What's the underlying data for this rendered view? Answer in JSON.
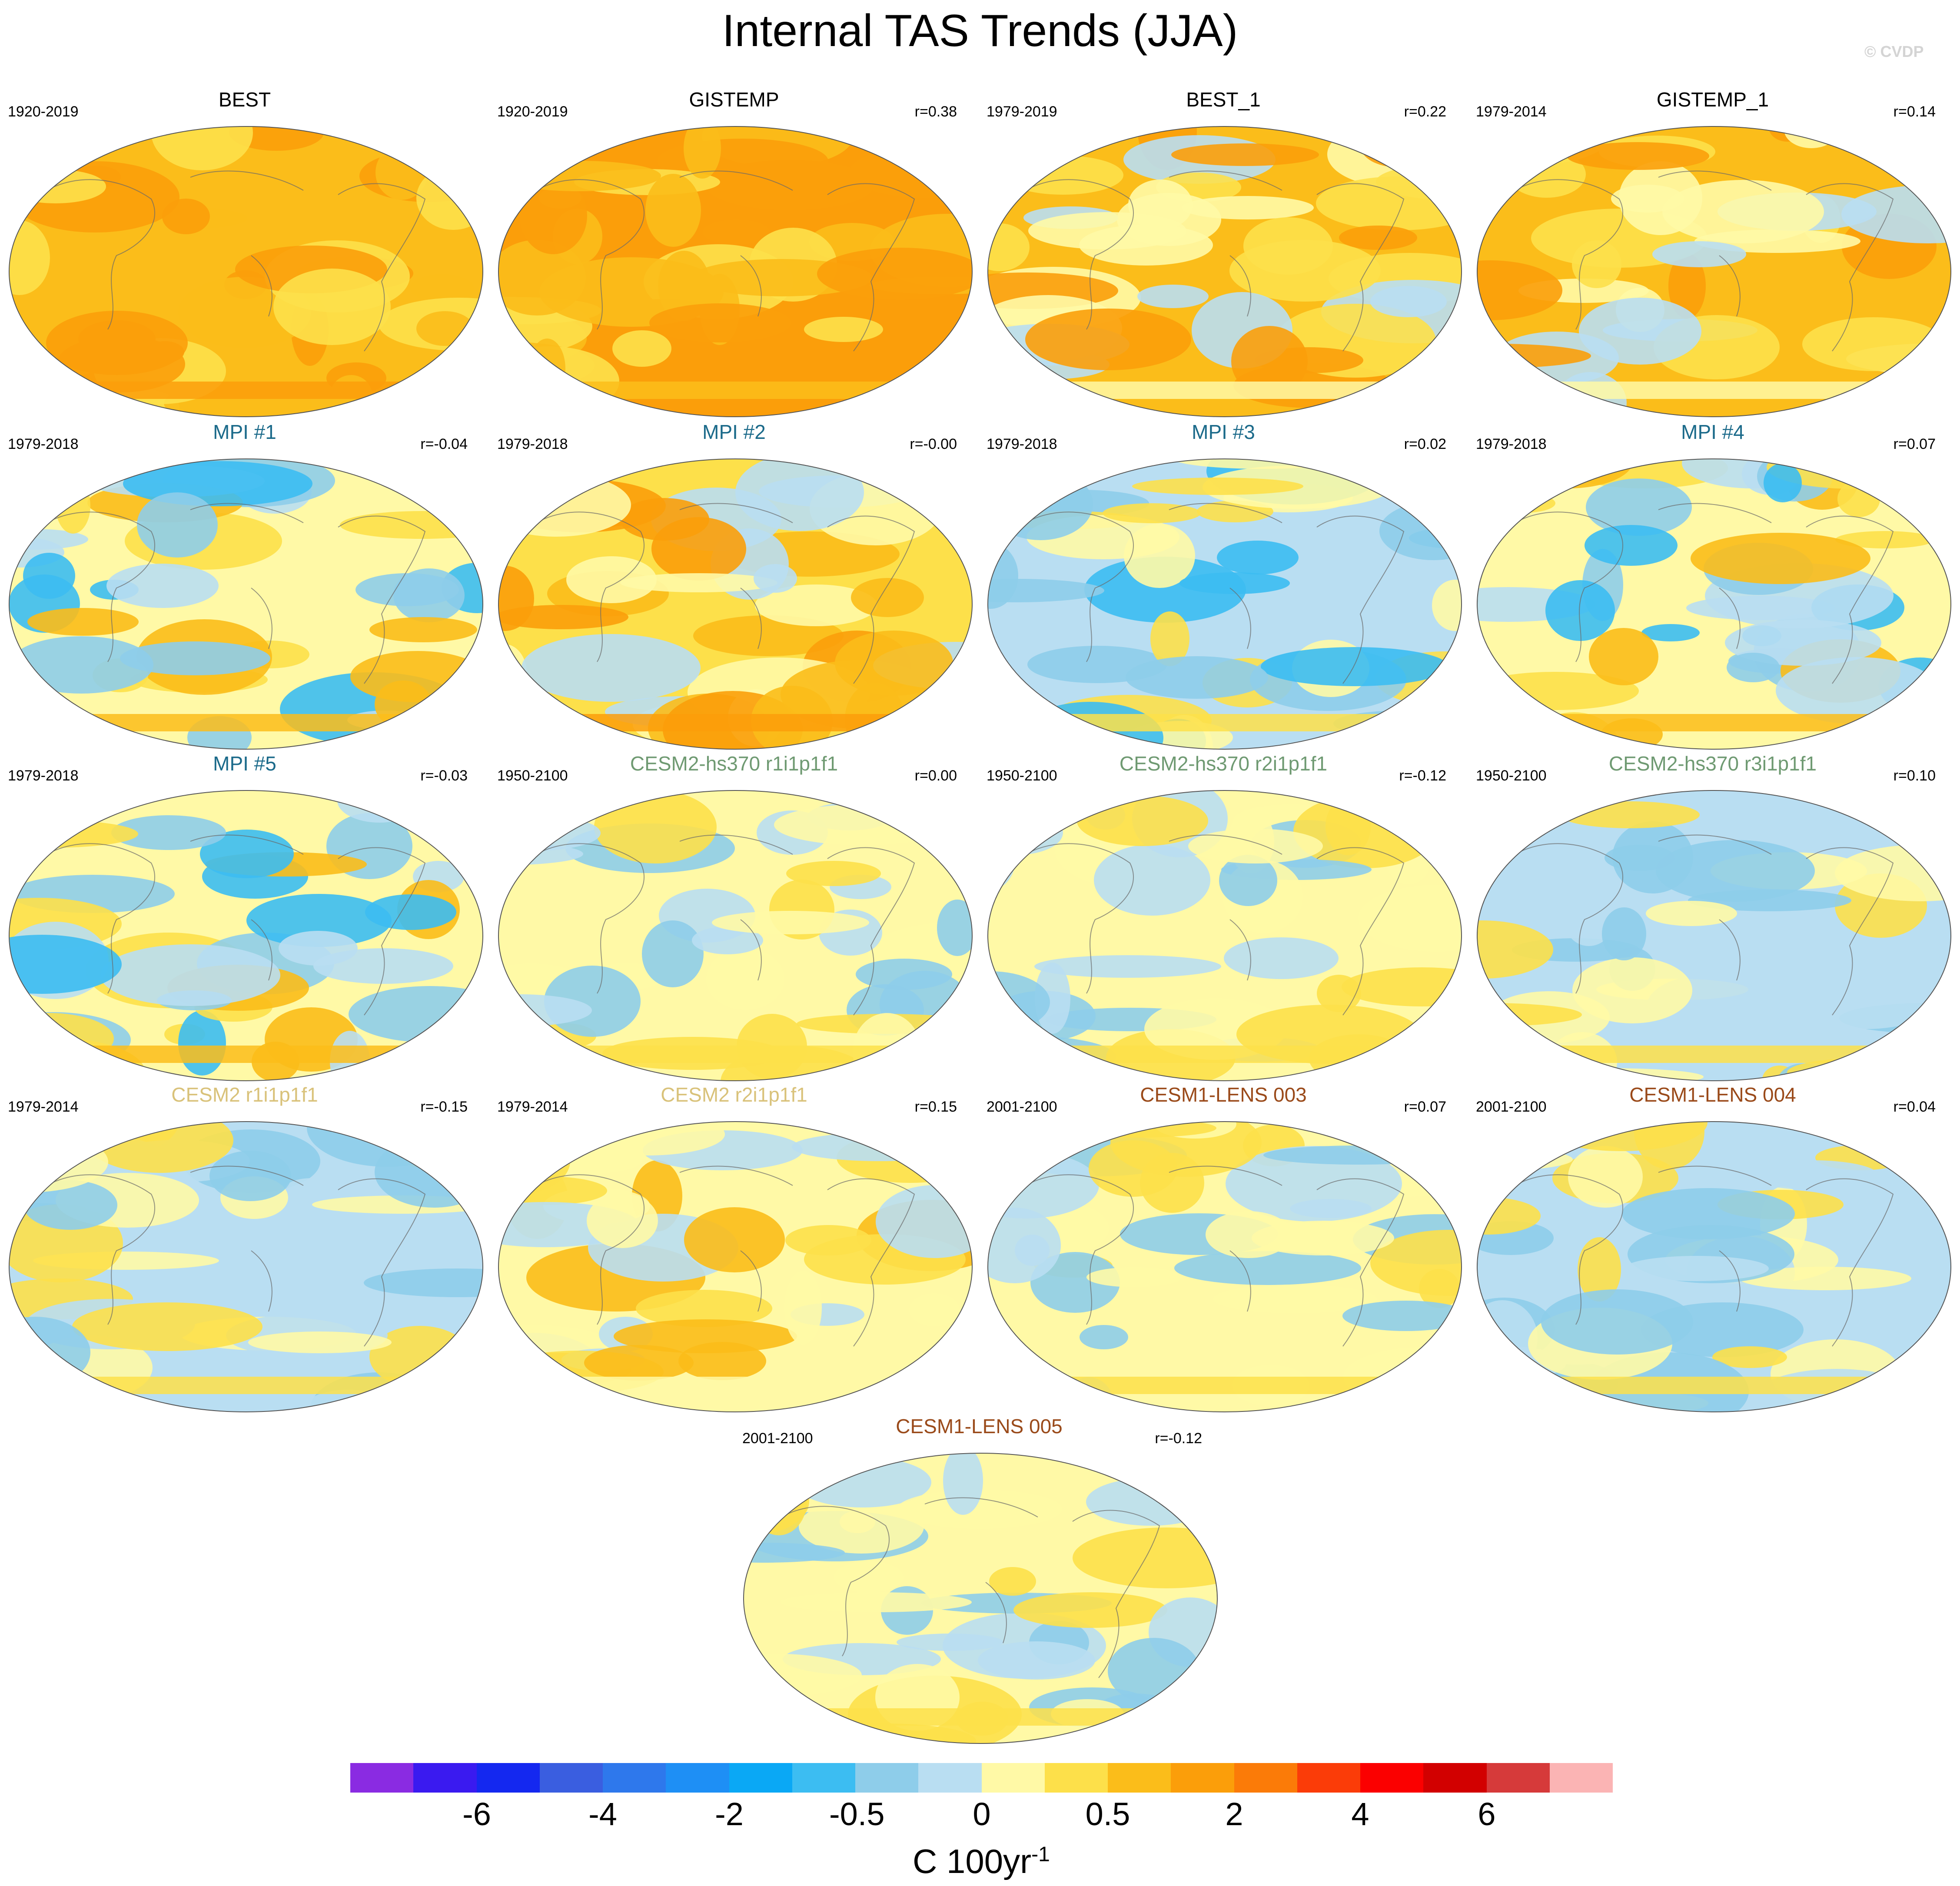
{
  "title": "Internal TAS Trends (JJA)",
  "copyright": "© CVDP",
  "panels": [
    {
      "title": "BEST",
      "title_color": "#000000",
      "period": "1920-2019",
      "corr": "",
      "palette": "warm_strong"
    },
    {
      "title": "GISTEMP",
      "title_color": "#000000",
      "period": "1920-2019",
      "corr": "r=0.38",
      "palette": "warm_full"
    },
    {
      "title": "BEST_1",
      "title_color": "#000000",
      "period": "1979-2019",
      "corr": "r=0.22",
      "palette": "warm_mixed"
    },
    {
      "title": "GISTEMP_1",
      "title_color": "#000000",
      "period": "1979-2014",
      "corr": "r=0.14",
      "palette": "warm_mixed"
    },
    {
      "title": "MPI #1",
      "title_color": "#1b6a8a",
      "period": "1979-2018",
      "corr": "r=-0.04",
      "palette": "mixed_strong"
    },
    {
      "title": "MPI #2",
      "title_color": "#1b6a8a",
      "period": "1979-2018",
      "corr": "r=-0.00",
      "palette": "mixed_warm"
    },
    {
      "title": "MPI #3",
      "title_color": "#1b6a8a",
      "period": "1979-2018",
      "corr": "r=0.02",
      "palette": "mixed_cool"
    },
    {
      "title": "MPI #4",
      "title_color": "#1b6a8a",
      "period": "1979-2018",
      "corr": "r=0.07",
      "palette": "mixed_strong"
    },
    {
      "title": "MPI #5",
      "title_color": "#1b6a8a",
      "period": "1979-2018",
      "corr": "r=-0.03",
      "palette": "mixed_strong"
    },
    {
      "title": "CESM2-hs370 r1i1p1f1",
      "title_color": "#6f9a72",
      "period": "1950-2100",
      "corr": "r=0.00",
      "palette": "mild"
    },
    {
      "title": "CESM2-hs370 r2i1p1f1",
      "title_color": "#6f9a72",
      "period": "1950-2100",
      "corr": "r=-0.12",
      "palette": "mild"
    },
    {
      "title": "CESM2-hs370 r3i1p1f1",
      "title_color": "#6f9a72",
      "period": "1950-2100",
      "corr": "r=0.10",
      "palette": "mild_cool"
    },
    {
      "title": "CESM2 r1i1p1f1",
      "title_color": "#d9c27a",
      "period": "1979-2014",
      "corr": "r=-0.15",
      "palette": "mild_cool"
    },
    {
      "title": "CESM2 r2i1p1f1",
      "title_color": "#d9c27a",
      "period": "1979-2014",
      "corr": "r=0.15",
      "palette": "mild_warm"
    },
    {
      "title": "CESM1-LENS 003",
      "title_color": "#9a4a1a",
      "period": "2001-2100",
      "corr": "r=0.07",
      "palette": "mild"
    },
    {
      "title": "CESM1-LENS 004",
      "title_color": "#9a4a1a",
      "period": "2001-2100",
      "corr": "r=0.04",
      "palette": "mild_cool"
    },
    {
      "title": "CESM1-LENS 005",
      "title_color": "#9a4a1a",
      "period": "2001-2100",
      "corr": "r=-0.12",
      "palette": "mild"
    }
  ],
  "colorbar": {
    "colors": [
      "#8a2be2",
      "#3a1af0",
      "#1428f0",
      "#3a5ee0",
      "#2e78ec",
      "#1e8ff5",
      "#0aa8f5",
      "#3cbdf2",
      "#8ecdea",
      "#b9def2",
      "#fff9a6",
      "#fde04a",
      "#fbbd1a",
      "#fb9e0a",
      "#fb7b08",
      "#fb3c08",
      "#fb0000",
      "#d20000",
      "#d63a3a",
      "#fbb4b4"
    ],
    "tick_labels": [
      "-6",
      "-4",
      "-2",
      "-0.5",
      "0",
      "0.5",
      "2",
      "4",
      "6"
    ],
    "units_base": "C 100yr",
    "units_sup": "-1"
  },
  "palettes": {
    "warm_strong": [
      "#fbbd1a",
      "#fb9e0a",
      "#fde04a",
      "#fbbd1a",
      "#fb9e0a"
    ],
    "warm_full": [
      "#fb9e0a",
      "#fbbd1a",
      "#fb9e0a",
      "#fde04a",
      "#fbbd1a"
    ],
    "warm_mixed": [
      "#fbbd1a",
      "#fde04a",
      "#fb9e0a",
      "#b9def2",
      "#fff9a6"
    ],
    "mixed_strong": [
      "#fff9a6",
      "#b9def2",
      "#8ecdea",
      "#fde04a",
      "#3cbdf2",
      "#fbbd1a"
    ],
    "mixed_warm": [
      "#fde04a",
      "#fff9a6",
      "#fbbd1a",
      "#b9def2",
      "#fb9e0a"
    ],
    "mixed_cool": [
      "#b9def2",
      "#8ecdea",
      "#fff9a6",
      "#3cbdf2",
      "#fde04a"
    ],
    "mild": [
      "#fff9a6",
      "#b9def2",
      "#fff9a6",
      "#8ecdea",
      "#fde04a"
    ],
    "mild_cool": [
      "#b9def2",
      "#fff9a6",
      "#8ecdea",
      "#b9def2",
      "#fde04a"
    ],
    "mild_warm": [
      "#fff9a6",
      "#fde04a",
      "#b9def2",
      "#fbbd1a",
      "#fff9a6"
    ]
  }
}
